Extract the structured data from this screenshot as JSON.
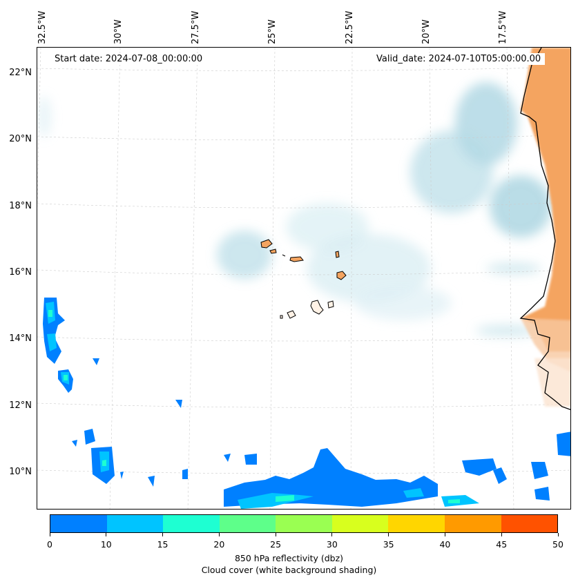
{
  "map": {
    "start_date": "Start date: 2024-07-08_00:00:00",
    "valid_date": "Valid_date: 2024-07-10T05:00:00.00",
    "lon_labels": [
      "32.5°W",
      "30°W",
      "27.5°W",
      "25°W",
      "22.5°W",
      "20°W",
      "17.5°W"
    ],
    "lat_labels": [
      "22°N",
      "20°N",
      "18°N",
      "16°N",
      "14°N",
      "12°N",
      "10°N"
    ],
    "land_color": "#f4a460",
    "cloud_color": "#a8d5e2",
    "gridline_color": "#cccccc"
  },
  "colorbar": {
    "ticks": [
      "0",
      "10",
      "15",
      "20",
      "25",
      "30",
      "35",
      "40",
      "45",
      "50"
    ],
    "colors": [
      "#0080ff",
      "#00c4ff",
      "#1effd2",
      "#5eff8a",
      "#9aff52",
      "#d8ff1e",
      "#ffd600",
      "#ff9a00",
      "#ff5200"
    ],
    "title": "850 hPa reflectivity (dbz)",
    "subtitle": "Cloud cover (white background shading)"
  }
}
